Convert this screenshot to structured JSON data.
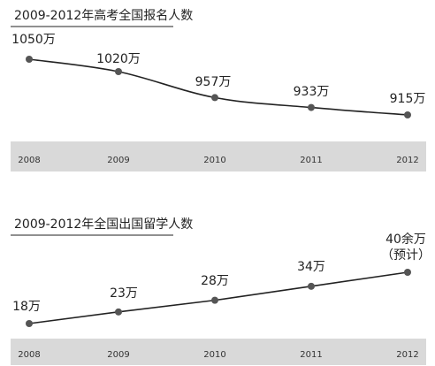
{
  "chart_data": [
    {
      "type": "line",
      "title": "2009-2012年高考全国报名人数",
      "categories": [
        "2008",
        "2009",
        "2010",
        "2011",
        "2012"
      ],
      "values": [
        1050,
        1020,
        957,
        933,
        915
      ],
      "value_labels": [
        "1050万",
        "1020万",
        "957万",
        "933万",
        "915万"
      ],
      "unit": "万",
      "grid": false,
      "legend": "none",
      "line_color": "#222222",
      "marker_color": "#555555",
      "axis_band_color": "#d9d9d9"
    },
    {
      "type": "line",
      "title": "2009-2012年全国出国留学人数",
      "categories": [
        "2008",
        "2009",
        "2010",
        "2011",
        "2012"
      ],
      "values": [
        18,
        23,
        28,
        34,
        40
      ],
      "value_labels": [
        "18万",
        "23万",
        "28万",
        "34万",
        "40余万"
      ],
      "annotations": [
        {
          "category": "2012",
          "text": "（预计）"
        }
      ],
      "unit": "万",
      "grid": false,
      "legend": "none",
      "line_color": "#222222",
      "marker_color": "#555555",
      "axis_band_color": "#d9d9d9"
    }
  ]
}
